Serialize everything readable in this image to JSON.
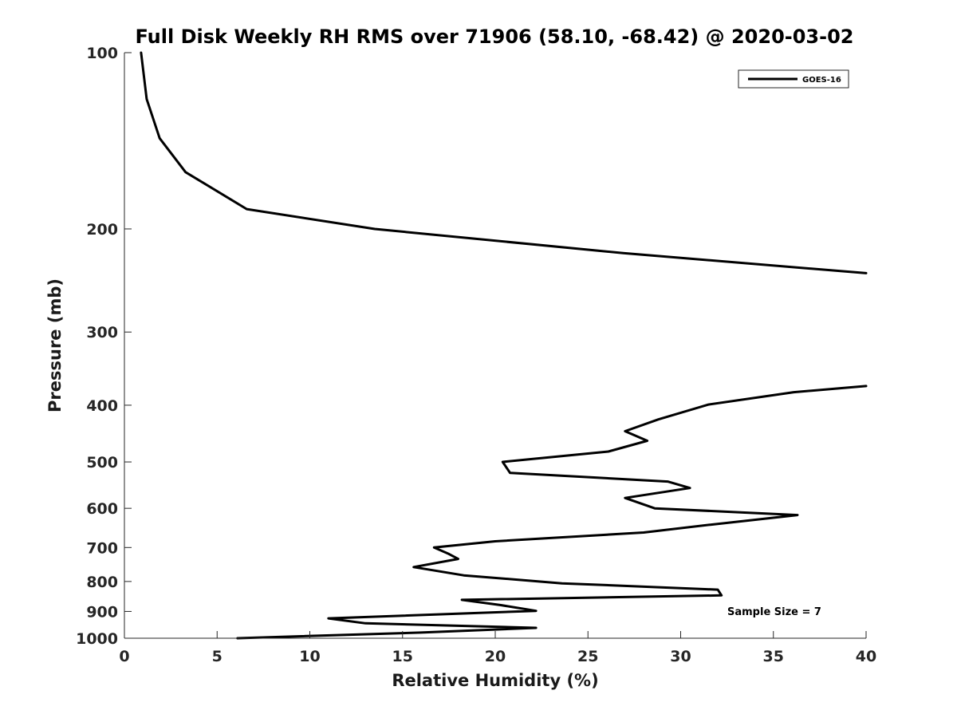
{
  "chart_data": {
    "type": "line",
    "title": "Full Disk Weekly RH RMS over 71906 (58.10, -68.42) @ 2020-03-02",
    "xlabel": "Relative Humidity (%)",
    "ylabel": "Pressure (mb)",
    "xlim": [
      0,
      40
    ],
    "ylim": [
      1000,
      100
    ],
    "y_scale": "log",
    "x_ticks": [
      "0",
      "5",
      "10",
      "15",
      "20",
      "25",
      "30",
      "35",
      "40"
    ],
    "y_ticks": [
      "100",
      "200",
      "300",
      "400",
      "500",
      "600",
      "700",
      "800",
      "900",
      "1000"
    ],
    "grid": false,
    "legend_position": "top-right",
    "series": [
      {
        "name": "GOES-16",
        "color": "#000000",
        "segments": [
          [
            [
              0.9,
              100
            ],
            [
              1.2,
              120
            ],
            [
              1.9,
              140
            ],
            [
              3.3,
              160
            ],
            [
              6.6,
              185
            ],
            [
              13.5,
              200
            ],
            [
              26.9,
              220
            ],
            [
              40.0,
              238
            ]
          ],
          [
            [
              40.0,
              371
            ],
            [
              36.1,
              380
            ],
            [
              31.5,
              399
            ],
            [
              28.8,
              423
            ],
            [
              27.0,
              443
            ],
            [
              28.2,
              460
            ],
            [
              26.1,
              480
            ],
            [
              20.4,
              500
            ],
            [
              20.8,
              522
            ],
            [
              29.3,
              540
            ],
            [
              30.5,
              554
            ],
            [
              27.0,
              576
            ],
            [
              28.6,
              600
            ],
            [
              36.3,
              616
            ],
            [
              31.6,
              640
            ],
            [
              28.0,
              660
            ],
            [
              20.0,
              683
            ],
            [
              16.7,
              700
            ],
            [
              17.5,
              718
            ],
            [
              18.0,
              732
            ],
            [
              15.6,
              756
            ],
            [
              18.3,
              781
            ],
            [
              23.6,
              806
            ],
            [
              32.0,
              826
            ],
            [
              32.2,
              845
            ],
            [
              18.2,
              860
            ],
            [
              20.3,
              878
            ],
            [
              22.2,
              898
            ],
            [
              11.0,
              925
            ],
            [
              13.0,
              943
            ],
            [
              22.2,
              960
            ],
            [
              16.0,
              978
            ],
            [
              6.1,
              1000
            ]
          ]
        ]
      }
    ],
    "annotations": [
      "Sample Size = 7"
    ]
  }
}
